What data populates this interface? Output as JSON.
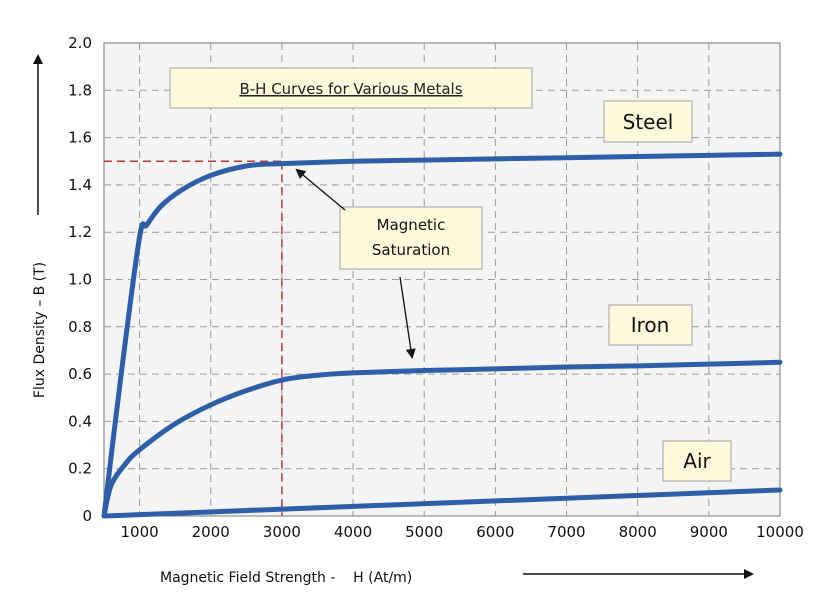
{
  "chart_data": {
    "type": "line",
    "title": "B-H Curves for Various Metals",
    "xlabel": "Magnetic Field Strength -    H (At/m)",
    "ylabel": "Flux Density – B (T)",
    "xlim": [
      500,
      10000
    ],
    "ylim": [
      0,
      2.0
    ],
    "x_ticks": [
      "1000",
      "2000",
      "3000",
      "4000",
      "5000",
      "6000",
      "7000",
      "8000",
      "9000",
      "10000"
    ],
    "y_ticks": [
      "0",
      "0.2",
      "0.4",
      "0.6",
      "0.8",
      "1.0",
      "1.2",
      "1.4",
      "1.6",
      "1.8",
      "2.0"
    ],
    "grid": true,
    "series": [
      {
        "name": "Steel",
        "x": [
          500,
          750,
          1000,
          1100,
          1300,
          1600,
          2000,
          2500,
          3000,
          4000,
          5000,
          6000,
          7000,
          8000,
          9000,
          10000
        ],
        "y": [
          0,
          0.62,
          1.18,
          1.23,
          1.31,
          1.38,
          1.44,
          1.48,
          1.49,
          1.5,
          1.505,
          1.51,
          1.515,
          1.52,
          1.525,
          1.53
        ]
      },
      {
        "name": "Iron",
        "x": [
          500,
          600,
          800,
          1000,
          1500,
          2000,
          2500,
          3000,
          3500,
          4000,
          5000,
          6000,
          7000,
          8000,
          9000,
          10000
        ],
        "y": [
          0,
          0.13,
          0.22,
          0.28,
          0.39,
          0.47,
          0.53,
          0.575,
          0.595,
          0.605,
          0.615,
          0.622,
          0.63,
          0.635,
          0.642,
          0.65
        ]
      },
      {
        "name": "Air",
        "x": [
          500,
          10000
        ],
        "y": [
          0,
          0.11
        ]
      }
    ],
    "saturation_point": {
      "x": 3000,
      "y": 1.5
    },
    "annotation": "Magnetic Saturation",
    "annotation_lines": [
      "Magnetic",
      "Saturation"
    ],
    "colors": {
      "curve": "#2f5ea8",
      "grid": "#9a9a9a",
      "dashed_marker": "#b23a3a",
      "label_box_fill": "#fff9dc",
      "label_box_stroke": "#a0a0a0",
      "plot_background": "#f4f4f4"
    }
  }
}
